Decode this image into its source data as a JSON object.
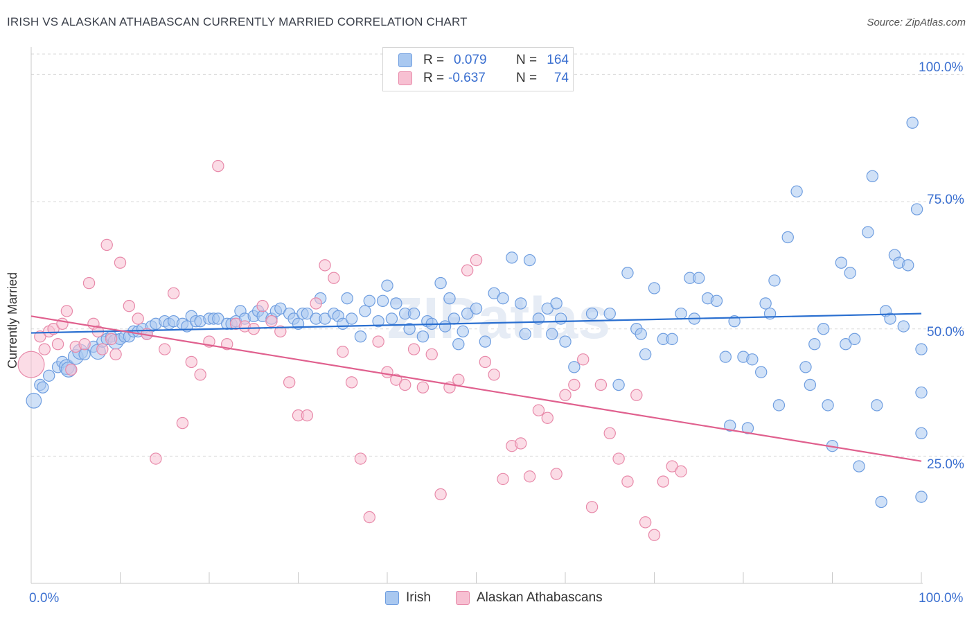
{
  "title": "IRISH VS ALASKAN ATHABASCAN CURRENTLY MARRIED CORRELATION CHART",
  "source": "Source: ZipAtlas.com",
  "legend": {
    "rows": [
      {
        "r_label": "R =",
        "r_value": "0.079",
        "n_label": "N =",
        "n_value": "164",
        "color": "#a9c8f0",
        "border": "#6f9ee0"
      },
      {
        "r_label": "R =",
        "r_value": "-0.637",
        "n_label": "N =",
        "n_value": "74",
        "color": "#f7c0d2",
        "border": "#e88aaa"
      }
    ]
  },
  "chart_data": {
    "type": "scatter",
    "title": "IRISH VS ALASKAN ATHABASCAN CURRENTLY MARRIED CORRELATION CHART",
    "xlabel": "",
    "ylabel": "Currently Married",
    "xlim": [
      0,
      100
    ],
    "ylim": [
      0,
      104
    ],
    "x_tick_labels": [
      "0.0%",
      "100.0%"
    ],
    "y_tick_labels": [
      "25.0%",
      "50.0%",
      "75.0%",
      "100.0%"
    ],
    "y_ticks": [
      25,
      50,
      75,
      100
    ],
    "watermark": "ZIPatlas",
    "series": [
      {
        "name": "Irish",
        "color": "#6f9ee0",
        "fill": "#a9c8f0",
        "trend": {
          "x": [
            0,
            100
          ],
          "y": [
            49.2,
            53.0
          ],
          "color": "#2a6fd0"
        },
        "points": [
          [
            0.3,
            35.9,
            4
          ],
          [
            1,
            39,
            3
          ],
          [
            1.3,
            38.5,
            3
          ],
          [
            2,
            40.8,
            3
          ],
          [
            3,
            42.5,
            3
          ],
          [
            3.5,
            43.5,
            3
          ],
          [
            4,
            42.5,
            4
          ],
          [
            4.2,
            42,
            4
          ],
          [
            5,
            44.5,
            4
          ],
          [
            5.5,
            45.5,
            4
          ],
          [
            6,
            45,
            3
          ],
          [
            7,
            46.5,
            3
          ],
          [
            7.5,
            45.5,
            4
          ],
          [
            8,
            47.5,
            3
          ],
          [
            8.5,
            48,
            3
          ],
          [
            9,
            48.5,
            3
          ],
          [
            9.5,
            47.5,
            4
          ],
          [
            10,
            48,
            3
          ],
          [
            10.5,
            48.5,
            3
          ],
          [
            11,
            48.5,
            3
          ],
          [
            11.5,
            49.5,
            3
          ],
          [
            12,
            49.5,
            3
          ],
          [
            12.5,
            50,
            3
          ],
          [
            13,
            49,
            3
          ],
          [
            13.5,
            50.5,
            3
          ],
          [
            14,
            51,
            3
          ],
          [
            15,
            51.5,
            3
          ],
          [
            15.5,
            51,
            3
          ],
          [
            16,
            51.5,
            3
          ],
          [
            17,
            51,
            3
          ],
          [
            17.5,
            50.5,
            3
          ],
          [
            18,
            52.5,
            3
          ],
          [
            18.5,
            51.5,
            3
          ],
          [
            19,
            51.5,
            3
          ],
          [
            20,
            52,
            3
          ],
          [
            20.5,
            52,
            3
          ],
          [
            21,
            52,
            3
          ],
          [
            22,
            51,
            3
          ],
          [
            22.5,
            51,
            3
          ],
          [
            23,
            51.5,
            3
          ],
          [
            23.5,
            53.5,
            3
          ],
          [
            24,
            52,
            3
          ],
          [
            25,
            52.5,
            3
          ],
          [
            25.5,
            53.5,
            3
          ],
          [
            26,
            52.5,
            3
          ],
          [
            27,
            52,
            3
          ],
          [
            27.5,
            53.5,
            3
          ],
          [
            28,
            54,
            3
          ],
          [
            29,
            53,
            3
          ],
          [
            29.5,
            52,
            3
          ],
          [
            30,
            51,
            3
          ],
          [
            30.5,
            53,
            3
          ],
          [
            31,
            53,
            3
          ],
          [
            32,
            52,
            3
          ],
          [
            32.5,
            56,
            3
          ],
          [
            33,
            52,
            3
          ],
          [
            34,
            53,
            3
          ],
          [
            34.5,
            52.5,
            3
          ],
          [
            35,
            51,
            3
          ],
          [
            35.5,
            56,
            3
          ],
          [
            36,
            52,
            3
          ],
          [
            37,
            48.5,
            3
          ],
          [
            37.5,
            53.5,
            3
          ],
          [
            38,
            55.5,
            3
          ],
          [
            39,
            51.5,
            3
          ],
          [
            39.5,
            55.5,
            3
          ],
          [
            40,
            58.5,
            3
          ],
          [
            40.5,
            52,
            3
          ],
          [
            41,
            55,
            3
          ],
          [
            42,
            53,
            3
          ],
          [
            42.5,
            50,
            3
          ],
          [
            43,
            53,
            3
          ],
          [
            44,
            48.5,
            3
          ],
          [
            44.5,
            51.5,
            3
          ],
          [
            45,
            51,
            3
          ],
          [
            46,
            59,
            3
          ],
          [
            46.5,
            50.5,
            3
          ],
          [
            47,
            56,
            3
          ],
          [
            47.5,
            52,
            3
          ],
          [
            48,
            47,
            3
          ],
          [
            48.5,
            49.5,
            3
          ],
          [
            49,
            53,
            3
          ],
          [
            50,
            54,
            3
          ],
          [
            51,
            47.5,
            3
          ],
          [
            52,
            57,
            3
          ],
          [
            53,
            56,
            3
          ],
          [
            54,
            64,
            3
          ],
          [
            55,
            55,
            3
          ],
          [
            55.5,
            49,
            3
          ],
          [
            56,
            63.5,
            3
          ],
          [
            57,
            52,
            3
          ],
          [
            58,
            54,
            3
          ],
          [
            58.5,
            49,
            3
          ],
          [
            59,
            55,
            3
          ],
          [
            59.5,
            52,
            3
          ],
          [
            60,
            47.5,
            3
          ],
          [
            61,
            42.5,
            3
          ],
          [
            63,
            53,
            3
          ],
          [
            65,
            53,
            3
          ],
          [
            66,
            39,
            3
          ],
          [
            67,
            61,
            3
          ],
          [
            68,
            50,
            3
          ],
          [
            68.5,
            49,
            3
          ],
          [
            69,
            45,
            3
          ],
          [
            70,
            58,
            3
          ],
          [
            71,
            48,
            3
          ],
          [
            72,
            48,
            3
          ],
          [
            73,
            53,
            3
          ],
          [
            74,
            60,
            3
          ],
          [
            74.5,
            52,
            3
          ],
          [
            75,
            60,
            3
          ],
          [
            76,
            56,
            3
          ],
          [
            77,
            55.5,
            3
          ],
          [
            78,
            44.5,
            3
          ],
          [
            78.5,
            31,
            3
          ],
          [
            79,
            51.5,
            3
          ],
          [
            80,
            44.5,
            3
          ],
          [
            80.5,
            30.5,
            3
          ],
          [
            81,
            44,
            3
          ],
          [
            82,
            41.5,
            3
          ],
          [
            82.5,
            55,
            3
          ],
          [
            83,
            53,
            3
          ],
          [
            83.5,
            59.5,
            3
          ],
          [
            84,
            35,
            3
          ],
          [
            85,
            68,
            3
          ],
          [
            86,
            77,
            3
          ],
          [
            87,
            42.5,
            3
          ],
          [
            87.5,
            39,
            3
          ],
          [
            88,
            47,
            3
          ],
          [
            89,
            50,
            3
          ],
          [
            89.5,
            35,
            3
          ],
          [
            90,
            27,
            3
          ],
          [
            91,
            63,
            3
          ],
          [
            91.5,
            47,
            3
          ],
          [
            92,
            61,
            3
          ],
          [
            92.5,
            48,
            3
          ],
          [
            93,
            23,
            3
          ],
          [
            94,
            69,
            3
          ],
          [
            94.5,
            80,
            3
          ],
          [
            95,
            35,
            3
          ],
          [
            95.5,
            16,
            3
          ],
          [
            96,
            53.5,
            3
          ],
          [
            96.5,
            52,
            3
          ],
          [
            97,
            64.5,
            3
          ],
          [
            97.5,
            63,
            3
          ],
          [
            98,
            50.5,
            3
          ],
          [
            98.5,
            62.5,
            3
          ],
          [
            99,
            90.5,
            3
          ],
          [
            99.5,
            73.5,
            3
          ],
          [
            100,
            37.5,
            3
          ],
          [
            100,
            46,
            3
          ],
          [
            100,
            29.5,
            3
          ],
          [
            100,
            17,
            3
          ]
        ]
      },
      {
        "name": "Alaskan Athabascans",
        "color": "#e88aaa",
        "fill": "#f7c0d2",
        "trend": {
          "x": [
            0,
            100
          ],
          "y": [
            52.5,
            24.0
          ],
          "color": "#e0608e"
        },
        "points": [
          [
            0,
            43,
            7
          ],
          [
            1,
            48.5,
            3
          ],
          [
            1.5,
            46,
            3
          ],
          [
            2,
            49.5,
            3
          ],
          [
            2.5,
            50,
            3
          ],
          [
            3,
            47,
            3
          ],
          [
            3.5,
            51,
            3
          ],
          [
            4,
            53.5,
            3
          ],
          [
            4.5,
            42,
            3
          ],
          [
            5,
            46.5,
            3
          ],
          [
            6,
            47,
            3
          ],
          [
            6.5,
            59,
            3
          ],
          [
            7,
            51,
            3
          ],
          [
            7.5,
            49.5,
            3
          ],
          [
            8,
            46,
            3
          ],
          [
            8.5,
            66.5,
            3
          ],
          [
            9,
            48,
            3
          ],
          [
            9.5,
            45,
            3
          ],
          [
            10,
            63,
            3
          ],
          [
            11,
            54.5,
            3
          ],
          [
            12,
            52,
            3
          ],
          [
            13,
            49,
            3
          ],
          [
            14,
            24.5,
            3
          ],
          [
            15,
            46,
            3
          ],
          [
            16,
            57,
            3
          ],
          [
            17,
            31.5,
            3
          ],
          [
            18,
            43.5,
            3
          ],
          [
            19,
            41,
            3
          ],
          [
            20,
            47.5,
            3
          ],
          [
            21,
            82,
            3
          ],
          [
            22,
            47,
            3
          ],
          [
            23,
            51,
            3
          ],
          [
            24,
            50.5,
            3
          ],
          [
            25,
            50,
            3
          ],
          [
            26,
            54.5,
            3
          ],
          [
            27,
            51.5,
            3
          ],
          [
            28,
            49.5,
            3
          ],
          [
            29,
            39.5,
            3
          ],
          [
            30,
            33,
            3
          ],
          [
            31,
            33,
            3
          ],
          [
            32,
            55,
            3
          ],
          [
            33,
            62.5,
            3
          ],
          [
            34,
            60,
            3
          ],
          [
            35,
            45.5,
            3
          ],
          [
            36,
            39.5,
            3
          ],
          [
            37,
            24.5,
            3
          ],
          [
            38,
            13,
            3
          ],
          [
            39,
            47.5,
            3
          ],
          [
            40,
            41.5,
            3
          ],
          [
            41,
            40,
            3
          ],
          [
            42,
            39,
            3
          ],
          [
            43,
            46,
            3
          ],
          [
            44,
            38.5,
            3
          ],
          [
            45,
            45,
            3
          ],
          [
            46,
            17.5,
            3
          ],
          [
            47,
            38.5,
            3
          ],
          [
            48,
            40,
            3
          ],
          [
            49,
            61.5,
            3
          ],
          [
            50,
            63.5,
            3
          ],
          [
            51,
            43.5,
            3
          ],
          [
            52,
            41,
            3
          ],
          [
            53,
            20.5,
            3
          ],
          [
            54,
            27,
            3
          ],
          [
            55,
            27.5,
            3
          ],
          [
            56,
            21,
            3
          ],
          [
            57,
            34,
            3
          ],
          [
            58,
            32.5,
            3
          ],
          [
            59,
            21.5,
            3
          ],
          [
            60,
            37,
            3
          ],
          [
            61,
            39,
            3
          ],
          [
            62,
            44,
            3
          ],
          [
            63,
            15,
            3
          ],
          [
            64,
            39,
            3
          ],
          [
            65,
            29.5,
            3
          ],
          [
            66,
            24.5,
            3
          ],
          [
            67,
            20,
            3
          ],
          [
            68,
            37,
            3
          ],
          [
            69,
            12,
            3
          ],
          [
            70,
            9.5,
            3
          ],
          [
            71,
            20,
            3
          ],
          [
            72,
            23,
            3
          ],
          [
            73,
            22,
            3
          ]
        ]
      }
    ]
  },
  "bottom_legend": [
    {
      "label": "Irish",
      "color": "#a9c8f0",
      "border": "#6f9ee0"
    },
    {
      "label": "Alaskan Athabascans",
      "color": "#f7c0d2",
      "border": "#e88aaa"
    }
  ]
}
